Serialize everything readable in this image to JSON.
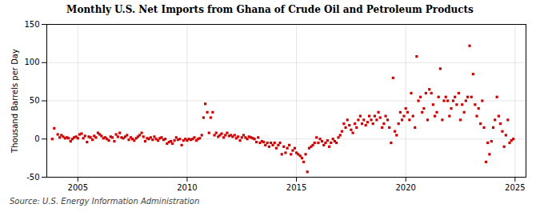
{
  "chart_data": {
    "type": "scatter",
    "title": "Monthly U.S. Net Imports from Ghana of Crude Oil and Petroleum Products",
    "ylabel": "Thousand Barrels per Day",
    "annotations": [
      "Source: U.S. Energy Information Administration"
    ],
    "color": "#cc0000",
    "marker": "square",
    "grid": true,
    "xlim": [
      2003.58,
      2025.5
    ],
    "xticks": [
      2005,
      2010,
      2015,
      2020,
      2025
    ],
    "ylim": [
      -50,
      150
    ],
    "yticks": [
      -50,
      0,
      50,
      100,
      150
    ],
    "x": [
      2003.83,
      2003.92,
      2004.08,
      2004.17,
      2004.25,
      2004.33,
      2004.42,
      2004.5,
      2004.58,
      2004.67,
      2004.75,
      2004.83,
      2004.92,
      2005.0,
      2005.08,
      2005.17,
      2005.25,
      2005.33,
      2005.42,
      2005.5,
      2005.58,
      2005.67,
      2005.75,
      2005.83,
      2005.92,
      2006.0,
      2006.08,
      2006.17,
      2006.25,
      2006.33,
      2006.42,
      2006.5,
      2006.58,
      2006.67,
      2006.75,
      2006.83,
      2006.92,
      2007.0,
      2007.08,
      2007.17,
      2007.25,
      2007.33,
      2007.42,
      2007.5,
      2007.58,
      2007.67,
      2007.75,
      2007.83,
      2007.92,
      2008.0,
      2008.08,
      2008.17,
      2008.25,
      2008.33,
      2008.42,
      2008.5,
      2008.58,
      2008.67,
      2008.75,
      2008.83,
      2008.92,
      2009.0,
      2009.08,
      2009.17,
      2009.25,
      2009.33,
      2009.42,
      2009.5,
      2009.58,
      2009.67,
      2009.75,
      2009.83,
      2009.92,
      2010.0,
      2010.08,
      2010.17,
      2010.25,
      2010.33,
      2010.42,
      2010.5,
      2010.58,
      2010.67,
      2010.75,
      2010.83,
      2010.92,
      2011.0,
      2011.08,
      2011.17,
      2011.25,
      2011.33,
      2011.42,
      2011.5,
      2011.58,
      2011.67,
      2011.75,
      2011.83,
      2011.92,
      2012.0,
      2012.08,
      2012.17,
      2012.25,
      2012.33,
      2012.42,
      2012.5,
      2012.58,
      2012.67,
      2012.75,
      2012.83,
      2012.92,
      2013.0,
      2013.08,
      2013.17,
      2013.25,
      2013.33,
      2013.42,
      2013.5,
      2013.58,
      2013.67,
      2013.75,
      2013.83,
      2013.92,
      2014.0,
      2014.08,
      2014.17,
      2014.25,
      2014.33,
      2014.42,
      2014.5,
      2014.58,
      2014.67,
      2014.75,
      2014.83,
      2014.92,
      2015.0,
      2015.08,
      2015.17,
      2015.25,
      2015.33,
      2015.42,
      2015.5,
      2015.58,
      2015.67,
      2015.75,
      2015.83,
      2015.92,
      2016.0,
      2016.08,
      2016.17,
      2016.25,
      2016.33,
      2016.42,
      2016.5,
      2016.58,
      2016.67,
      2016.75,
      2016.83,
      2016.92,
      2017.0,
      2017.08,
      2017.17,
      2017.25,
      2017.33,
      2017.42,
      2017.5,
      2017.58,
      2017.67,
      2017.75,
      2017.83,
      2017.92,
      2018.0,
      2018.08,
      2018.17,
      2018.25,
      2018.33,
      2018.42,
      2018.5,
      2018.58,
      2018.67,
      2018.75,
      2018.83,
      2018.92,
      2019.0,
      2019.08,
      2019.17,
      2019.25,
      2019.33,
      2019.42,
      2019.5,
      2019.58,
      2019.67,
      2019.75,
      2019.83,
      2019.92,
      2020.0,
      2020.08,
      2020.17,
      2020.25,
      2020.33,
      2020.42,
      2020.5,
      2020.58,
      2020.67,
      2020.75,
      2020.83,
      2020.92,
      2021.0,
      2021.08,
      2021.17,
      2021.25,
      2021.33,
      2021.42,
      2021.5,
      2021.58,
      2021.67,
      2021.75,
      2021.83,
      2021.92,
      2022.0,
      2022.08,
      2022.17,
      2022.25,
      2022.33,
      2022.42,
      2022.5,
      2022.58,
      2022.67,
      2022.75,
      2022.83,
      2022.92,
      2023.0,
      2023.08,
      2023.17,
      2023.25,
      2023.33,
      2023.42,
      2023.5,
      2023.58,
      2023.67,
      2023.75,
      2023.83,
      2023.92,
      2024.0,
      2024.08,
      2024.17,
      2024.25,
      2024.33,
      2024.42,
      2024.5,
      2024.58,
      2024.67,
      2024.75,
      2024.83,
      2024.92
    ],
    "values": [
      0,
      14,
      6,
      2,
      5,
      3,
      1,
      2,
      1,
      -3,
      0,
      2,
      3,
      1,
      6,
      7,
      1,
      4,
      -4,
      3,
      2,
      -1,
      4,
      2,
      8,
      6,
      4,
      1,
      2,
      0,
      -2,
      3,
      2,
      -3,
      6,
      3,
      8,
      2,
      1,
      3,
      5,
      -1,
      2,
      0,
      -2,
      1,
      3,
      5,
      8,
      3,
      -3,
      1,
      0,
      2,
      -1,
      3,
      0,
      -2,
      1,
      2,
      -1,
      0,
      -6,
      -4,
      -3,
      -6,
      -2,
      2,
      -1,
      0,
      -8,
      -2,
      0,
      -2,
      0,
      -1,
      0,
      2,
      -2,
      0,
      1,
      5,
      28,
      46,
      35,
      8,
      28,
      35,
      5,
      8,
      3,
      5,
      7,
      2,
      5,
      8,
      4,
      5,
      3,
      5,
      1,
      3,
      -2,
      2,
      5,
      2,
      0,
      3,
      2,
      1,
      0,
      -4,
      2,
      -5,
      -3,
      -4,
      -8,
      -5,
      -10,
      -5,
      -8,
      -5,
      -12,
      -8,
      -5,
      -20,
      -10,
      -18,
      -12,
      -8,
      -20,
      -15,
      -12,
      -18,
      -20,
      -22,
      -25,
      -30,
      -20,
      -43,
      -12,
      -10,
      -8,
      -5,
      2,
      -5,
      0,
      -3,
      -8,
      -5,
      -2,
      -10,
      -5,
      0,
      -3,
      -5,
      2,
      5,
      10,
      20,
      15,
      25,
      18,
      12,
      8,
      20,
      15,
      25,
      30,
      20,
      25,
      18,
      22,
      30,
      25,
      20,
      30,
      25,
      35,
      28,
      15,
      20,
      30,
      25,
      15,
      -5,
      80,
      10,
      5,
      20,
      35,
      25,
      30,
      40,
      35,
      25,
      60,
      30,
      15,
      108,
      50,
      55,
      35,
      40,
      60,
      25,
      65,
      60,
      45,
      30,
      35,
      55,
      92,
      25,
      50,
      55,
      50,
      30,
      40,
      50,
      55,
      45,
      60,
      25,
      45,
      35,
      50,
      55,
      122,
      55,
      85,
      45,
      30,
      40,
      20,
      50,
      15,
      -30,
      -5,
      -20,
      -3,
      15,
      25,
      55,
      30,
      20,
      10,
      -10,
      5,
      25,
      -5,
      -2,
      0
    ]
  }
}
